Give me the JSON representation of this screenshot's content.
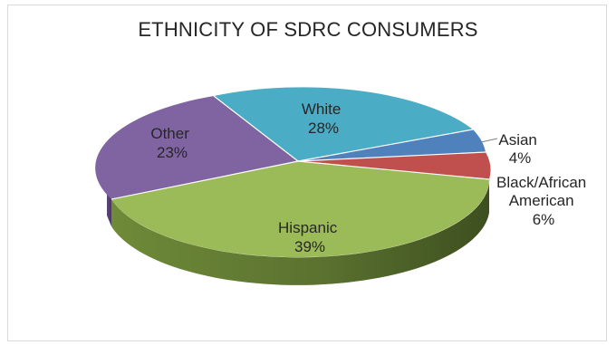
{
  "chart_data": {
    "type": "pie",
    "title": "ETHNICITY OF SDRC CONSUMERS",
    "categories": [
      "White",
      "Asian",
      "Black/African American",
      "Hispanic",
      "Other"
    ],
    "values": [
      28,
      4,
      6,
      39,
      23
    ],
    "display": {
      "White": [
        "White",
        "28%"
      ],
      "Asian": [
        "Asian",
        "4%"
      ],
      "Black": [
        "Black/African",
        "American",
        "6%"
      ],
      "Hispanic": [
        "Hispanic",
        "39%"
      ],
      "Other": [
        "Other",
        "23%"
      ]
    },
    "colors": [
      "#4BACC6",
      "#4F81BD",
      "#C0504D",
      "#9BBB59",
      "#8064A2"
    ],
    "legend": "none",
    "style": "3d-pie"
  }
}
